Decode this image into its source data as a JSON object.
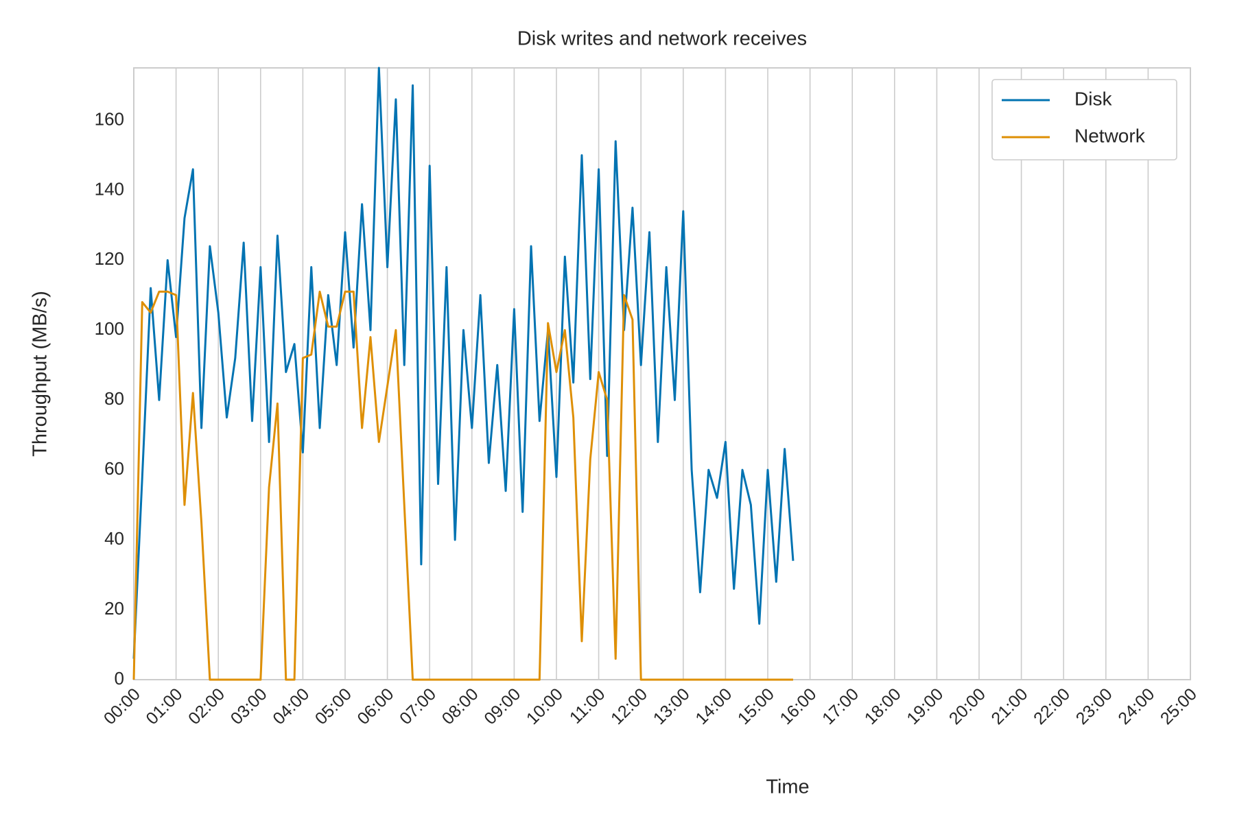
{
  "chart_data": {
    "type": "line",
    "title": "Disk writes and network receives",
    "x_label": "Time",
    "y_label": "Throughput (MB/s)",
    "x": [
      0,
      0.2,
      0.4,
      0.6,
      0.8,
      1,
      1.2,
      1.4,
      1.6,
      1.8,
      2,
      2.2,
      2.4,
      2.6,
      2.8,
      3,
      3.2,
      3.4,
      3.6,
      3.8,
      4,
      4.2,
      4.4,
      4.6,
      4.8,
      5,
      5.2,
      5.4,
      5.6,
      5.8,
      6,
      6.2,
      6.4,
      6.6,
      6.8,
      7,
      7.2,
      7.4,
      7.6,
      7.8,
      8,
      8.2,
      8.4,
      8.6,
      8.8,
      9,
      9.2,
      9.4,
      9.6,
      9.8,
      10,
      10.2,
      10.4,
      10.6,
      10.8,
      11,
      11.2,
      11.4,
      11.6,
      11.8,
      12,
      12.2,
      12.4,
      12.6,
      12.8,
      13,
      13.2,
      13.4,
      13.6,
      13.8,
      14,
      14.2,
      14.4,
      14.6,
      14.8,
      15,
      15.2,
      15.4,
      15.6
    ],
    "series": [
      {
        "name": "Disk",
        "color": "#0173b2",
        "values": [
          6,
          58,
          112,
          80,
          120,
          98,
          132,
          146,
          72,
          124,
          105,
          75,
          92,
          125,
          74,
          118,
          68,
          127,
          88,
          96,
          65,
          118,
          72,
          110,
          90,
          128,
          95,
          136,
          100,
          175,
          118,
          166,
          90,
          170,
          33,
          147,
          56,
          118,
          40,
          100,
          72,
          110,
          62,
          90,
          54,
          106,
          48,
          124,
          74,
          100,
          58,
          121,
          85,
          150,
          86,
          146,
          64,
          154,
          100,
          135,
          90,
          128,
          68,
          118,
          80,
          134,
          60,
          25,
          60,
          52,
          68,
          26,
          60,
          50,
          16,
          60,
          28,
          66,
          34
        ]
      },
      {
        "name": "Network",
        "color": "#de8f05",
        "values": [
          0,
          108,
          105,
          111,
          111,
          110,
          50,
          82,
          45,
          0,
          0,
          0,
          0,
          0,
          0,
          0,
          55,
          79,
          0,
          0,
          92,
          93,
          111,
          101,
          101,
          111,
          111,
          72,
          98,
          68,
          84,
          100,
          50,
          0,
          0,
          0,
          0,
          0,
          0,
          0,
          0,
          0,
          0,
          0,
          0,
          0,
          0,
          0,
          0,
          102,
          88,
          100,
          75,
          11,
          63,
          88,
          80,
          6,
          110,
          103,
          0,
          0,
          0,
          0,
          0,
          0,
          0,
          0,
          0,
          0,
          0,
          0,
          0,
          0,
          0,
          0,
          0,
          0,
          0
        ]
      }
    ],
    "xlim": [
      0,
      25
    ],
    "xticks": [
      {
        "value": 0,
        "label": "00:00"
      },
      {
        "value": 1,
        "label": "01:00"
      },
      {
        "value": 2,
        "label": "02:00"
      },
      {
        "value": 3,
        "label": "03:00"
      },
      {
        "value": 4,
        "label": "04:00"
      },
      {
        "value": 5,
        "label": "05:00"
      },
      {
        "value": 6,
        "label": "06:00"
      },
      {
        "value": 7,
        "label": "07:00"
      },
      {
        "value": 8,
        "label": "08:00"
      },
      {
        "value": 9,
        "label": "09:00"
      },
      {
        "value": 10,
        "label": "10:00"
      },
      {
        "value": 11,
        "label": "11:00"
      },
      {
        "value": 12,
        "label": "12:00"
      },
      {
        "value": 13,
        "label": "13:00"
      },
      {
        "value": 14,
        "label": "14:00"
      },
      {
        "value": 15,
        "label": "15:00"
      },
      {
        "value": 16,
        "label": "16:00"
      },
      {
        "value": 17,
        "label": "17:00"
      },
      {
        "value": 18,
        "label": "18:00"
      },
      {
        "value": 19,
        "label": "19:00"
      },
      {
        "value": 20,
        "label": "20:00"
      },
      {
        "value": 21,
        "label": "21:00"
      },
      {
        "value": 22,
        "label": "22:00"
      },
      {
        "value": 23,
        "label": "23:00"
      },
      {
        "value": 24,
        "label": "24:00"
      },
      {
        "value": 25,
        "label": "25:00"
      }
    ],
    "ylim": [
      0,
      175
    ],
    "yticks": [
      0,
      20,
      40,
      60,
      80,
      100,
      120,
      140,
      160
    ],
    "grid": "x",
    "legend": "upper right"
  }
}
